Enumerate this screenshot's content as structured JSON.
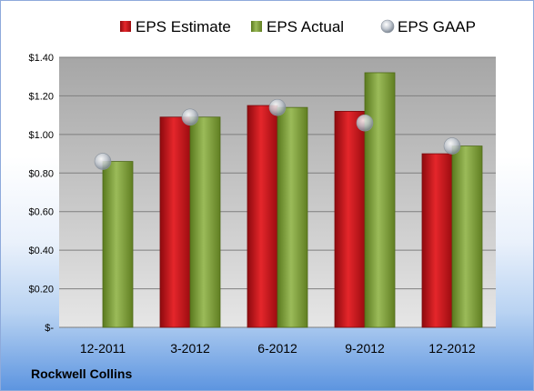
{
  "company": "Rockwell Collins",
  "chart_data": {
    "type": "bar",
    "categories": [
      "12-2011",
      "3-2012",
      "6-2012",
      "9-2012",
      "12-2012"
    ],
    "series": [
      {
        "name": "EPS Estimate",
        "kind": "bar",
        "color": "#c0141a",
        "values": [
          null,
          1.09,
          1.15,
          1.12,
          0.9
        ]
      },
      {
        "name": "EPS Actual",
        "kind": "bar",
        "color": "#7a9a2e",
        "values": [
          0.86,
          1.09,
          1.14,
          1.32,
          0.94
        ]
      },
      {
        "name": "EPS GAAP",
        "kind": "marker",
        "color": "#c0c7cf",
        "values": [
          0.86,
          1.09,
          1.14,
          1.06,
          0.94
        ]
      }
    ],
    "y_ticks": [
      0,
      0.2,
      0.4,
      0.6,
      0.8,
      1.0,
      1.2,
      1.4
    ],
    "y_tick_labels": [
      "$-",
      "$0.20",
      "$0.40",
      "$0.60",
      "$0.80",
      "$1.00",
      "$1.20",
      "$1.40"
    ],
    "ylim": [
      0,
      1.4
    ],
    "grid": true,
    "legend_position": "top"
  }
}
